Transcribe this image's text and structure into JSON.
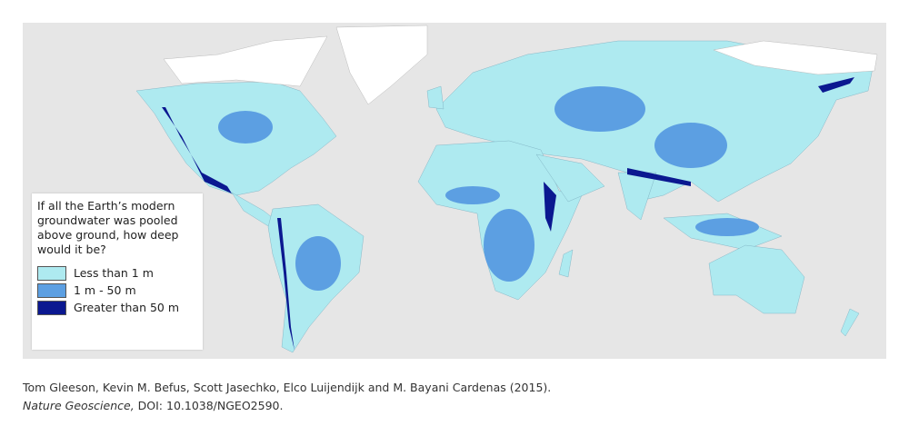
{
  "map": {
    "legend": {
      "title_lines": [
        "If all the Earth’s modern",
        "groundwater was pooled",
        "above ground, how deep",
        "would it be?"
      ],
      "items": [
        {
          "label": "Less than 1 m",
          "color": "#aeeaf0"
        },
        {
          "label": "1 m - 50 m",
          "color": "#5c9fe2"
        },
        {
          "label": "Greater than 50 m",
          "color": "#0b1890"
        }
      ]
    },
    "citation": {
      "authors": "Tom Gleeson, Kevin M. Befus, Scott Jasechko, Elco Luijendijk and M. Bayani Cardenas (2015).",
      "journal": "Nature Geoscience,",
      "doi": "DOI: 10.1038/NGEO2590."
    }
  }
}
